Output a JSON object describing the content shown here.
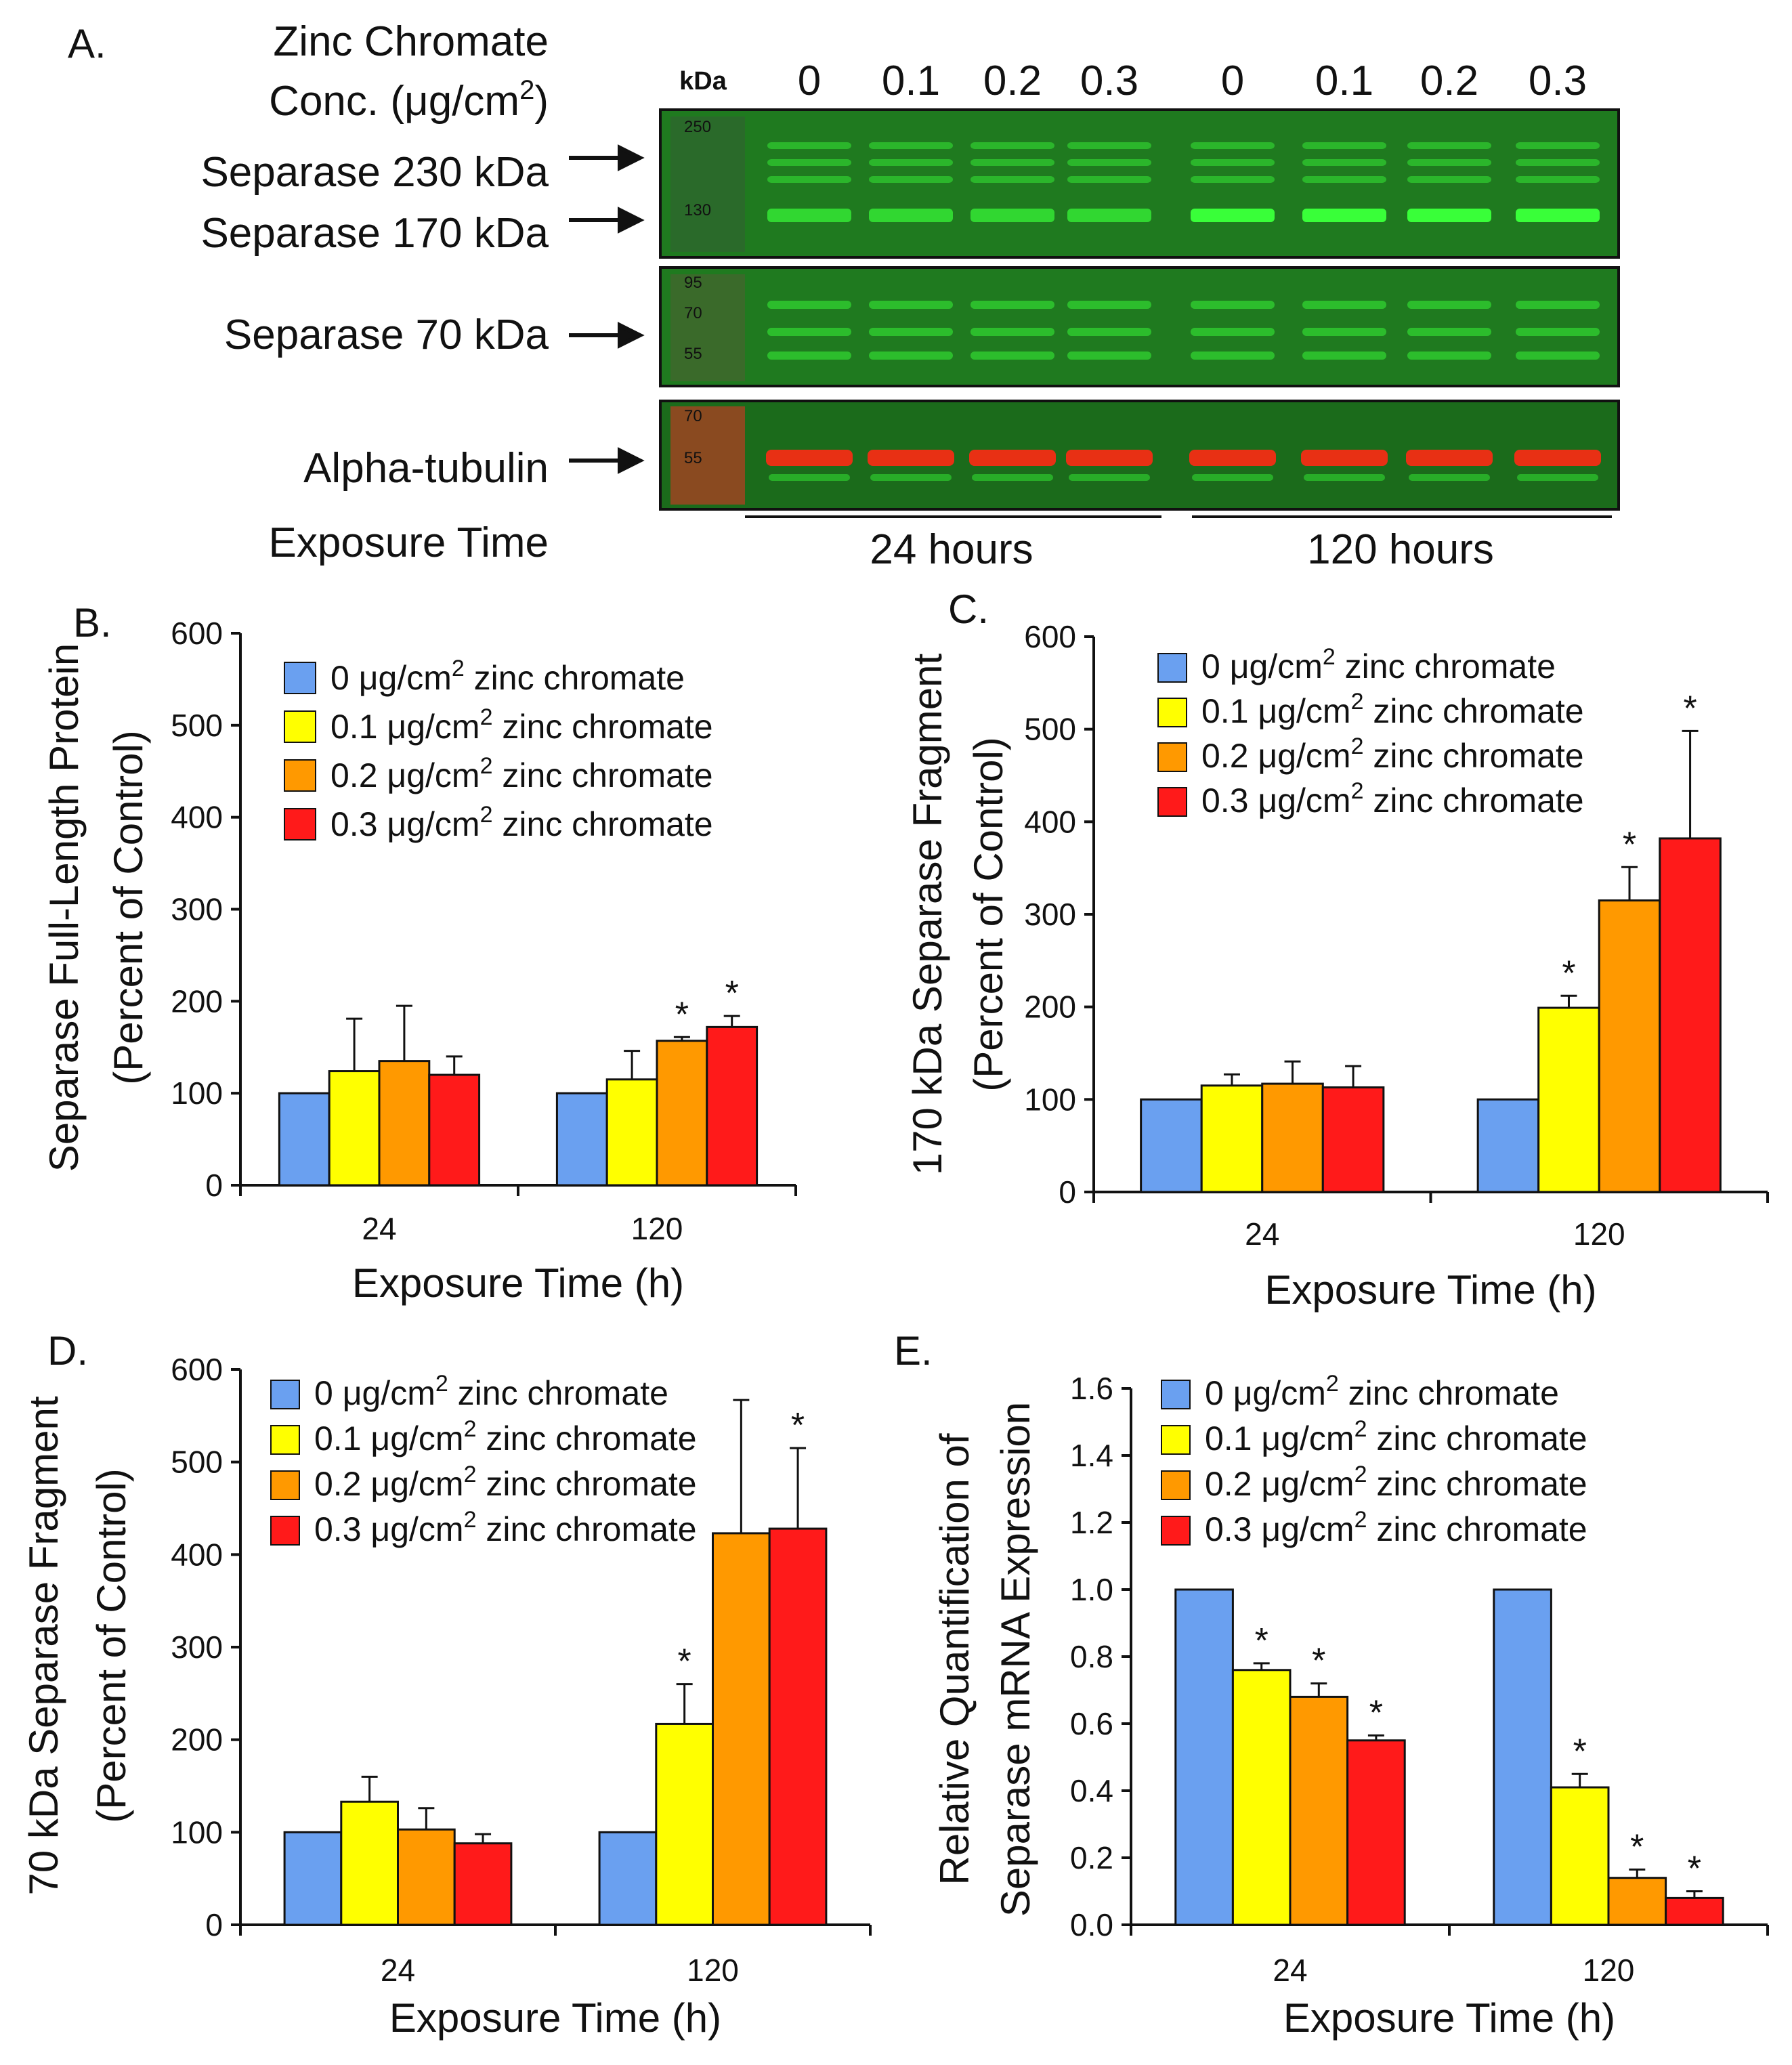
{
  "colors": {
    "c0": "#6aa0f0",
    "c1": "#ffff00",
    "c2": "#ff9900",
    "c3": "#ff1a1a",
    "blot_bg": "#1f7a1f",
    "blot_band": "#39ff39",
    "tubulin_band": "#ff2a14"
  },
  "blot": {
    "panel_label": "A.",
    "header_line1": "Zinc Chromate",
    "header_line2": "Conc. (μg/cm",
    "header_line2_sup": "2",
    "header_line2_end": ")",
    "kda_label": "kDa",
    "conc_labels": [
      "0",
      "0.1",
      "0.2",
      "0.3",
      "0",
      "0.1",
      "0.2",
      "0.3"
    ],
    "row_labels": [
      "Separase 230 kDa",
      "Separase 170 kDa",
      "Separase 70 kDa",
      "Alpha-tubulin"
    ],
    "exposure_label": "Exposure Time",
    "time_groups": [
      "24 hours",
      "120 hours"
    ],
    "markers_top": [
      "250",
      "130"
    ],
    "markers_mid": [
      "95",
      "70",
      "55"
    ],
    "markers_bot": [
      "70",
      "55"
    ]
  },
  "legend_entries": [
    {
      "pre": "0 μg/cm",
      "sup": "2",
      "post": " zinc chromate"
    },
    {
      "pre": "0.1 μg/cm",
      "sup": "2",
      "post": " zinc chromate"
    },
    {
      "pre": "0.2 μg/cm",
      "sup": "2",
      "post": " zinc chromate"
    },
    {
      "pre": "0.3 μg/cm",
      "sup": "2",
      "post": " zinc chromate"
    }
  ],
  "chart_data": [
    {
      "panel": "B.",
      "type": "bar",
      "categories": [
        "24",
        "120"
      ],
      "xlabel": "Exposure Time (h)",
      "ylabel_lines": [
        "Separase Full-Length Protein",
        "(Percent of Control)"
      ],
      "ylim": [
        0,
        600
      ],
      "yticks": [
        "0",
        "100",
        "200",
        "300",
        "400",
        "500",
        "600"
      ],
      "series": [
        {
          "name": "0 μg/cm2 zinc chromate",
          "values": [
            100,
            100
          ],
          "errors": [
            0,
            0
          ],
          "stars": [
            false,
            false
          ]
        },
        {
          "name": "0.1 μg/cm2 zinc chromate",
          "values": [
            124,
            115
          ],
          "errors": [
            57,
            31
          ],
          "stars": [
            false,
            false
          ]
        },
        {
          "name": "0.2 μg/cm2 zinc chromate",
          "values": [
            135,
            157
          ],
          "errors": [
            60,
            4
          ],
          "stars": [
            false,
            true
          ]
        },
        {
          "name": "0.3 μg/cm2 zinc chromate",
          "values": [
            120,
            172
          ],
          "errors": [
            20,
            12
          ],
          "stars": [
            false,
            true
          ]
        }
      ]
    },
    {
      "panel": "C.",
      "type": "bar",
      "categories": [
        "24",
        "120"
      ],
      "xlabel": "Exposure Time (h)",
      "ylabel_lines": [
        "170 kDa Separase Fragment",
        "(Percent of Control)"
      ],
      "ylim": [
        0,
        600
      ],
      "yticks": [
        "0",
        "100",
        "200",
        "300",
        "400",
        "500",
        "600"
      ],
      "series": [
        {
          "name": "0 μg/cm2 zinc chromate",
          "values": [
            100,
            100
          ],
          "errors": [
            0,
            0
          ],
          "stars": [
            false,
            false
          ]
        },
        {
          "name": "0.1 μg/cm2 zinc chromate",
          "values": [
            115,
            199
          ],
          "errors": [
            12,
            13
          ],
          "stars": [
            false,
            true
          ]
        },
        {
          "name": "0.2 μg/cm2 zinc chromate",
          "values": [
            117,
            315
          ],
          "errors": [
            24,
            36
          ],
          "stars": [
            false,
            true
          ]
        },
        {
          "name": "0.3 μg/cm2 zinc chromate",
          "values": [
            113,
            382
          ],
          "errors": [
            23,
            116
          ],
          "stars": [
            false,
            true
          ]
        }
      ]
    },
    {
      "panel": "D.",
      "type": "bar",
      "categories": [
        "24",
        "120"
      ],
      "xlabel": "Exposure Time (h)",
      "ylabel_lines": [
        "70 kDa Separase Fragment",
        "(Percent of Control)"
      ],
      "ylim": [
        0,
        600
      ],
      "yticks": [
        "0",
        "100",
        "200",
        "300",
        "400",
        "500",
        "600"
      ],
      "series": [
        {
          "name": "0 μg/cm2 zinc chromate",
          "values": [
            100,
            100
          ],
          "errors": [
            0,
            0
          ],
          "stars": [
            false,
            false
          ]
        },
        {
          "name": "0.1 μg/cm2 zinc chromate",
          "values": [
            133,
            217
          ],
          "errors": [
            27,
            43
          ],
          "stars": [
            false,
            true
          ]
        },
        {
          "name": "0.2 μg/cm2 zinc chromate",
          "values": [
            103,
            423
          ],
          "errors": [
            23,
            144
          ],
          "stars": [
            false,
            false
          ]
        },
        {
          "name": "0.3 μg/cm2 zinc chromate",
          "values": [
            88,
            428
          ],
          "errors": [
            10,
            87
          ],
          "stars": [
            false,
            true
          ]
        }
      ]
    },
    {
      "panel": "E.",
      "type": "bar",
      "categories": [
        "24",
        "120"
      ],
      "xlabel": "Exposure Time (h)",
      "ylabel_lines": [
        "Relative Quantification of",
        "Separase mRNA Expression"
      ],
      "ylim": [
        0,
        1.6
      ],
      "yticks": [
        "0.0",
        "0.2",
        "0.4",
        "0.6",
        "0.8",
        "1.0",
        "1.2",
        "1.4",
        "1.6"
      ],
      "series": [
        {
          "name": "0 μg/cm2 zinc chromate",
          "values": [
            1.0,
            1.0
          ],
          "errors": [
            0,
            0
          ],
          "stars": [
            false,
            false
          ]
        },
        {
          "name": "0.1 μg/cm2 zinc chromate",
          "values": [
            0.76,
            0.41
          ],
          "errors": [
            0.02,
            0.04
          ],
          "stars": [
            true,
            true
          ]
        },
        {
          "name": "0.2 μg/cm2 zinc chromate",
          "values": [
            0.68,
            0.14
          ],
          "errors": [
            0.04,
            0.025
          ],
          "stars": [
            true,
            true
          ]
        },
        {
          "name": "0.3 μg/cm2 zinc chromate",
          "values": [
            0.55,
            0.08
          ],
          "errors": [
            0.015,
            0.02
          ],
          "stars": [
            true,
            true
          ]
        }
      ]
    }
  ]
}
